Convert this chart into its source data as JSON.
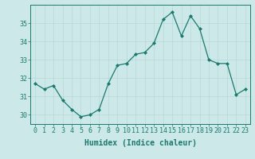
{
  "x": [
    0,
    1,
    2,
    3,
    4,
    5,
    6,
    7,
    8,
    9,
    10,
    11,
    12,
    13,
    14,
    15,
    16,
    17,
    18,
    19,
    20,
    21,
    22,
    23
  ],
  "y": [
    31.7,
    31.4,
    31.6,
    30.8,
    30.3,
    29.9,
    30.0,
    30.3,
    31.7,
    32.7,
    32.8,
    33.3,
    33.4,
    33.9,
    35.2,
    35.6,
    34.3,
    35.4,
    34.7,
    33.0,
    32.8,
    32.8,
    31.1,
    31.4
  ],
  "xlim": [
    -0.5,
    23.5
  ],
  "ylim": [
    29.5,
    36.0
  ],
  "yticks": [
    30,
    31,
    32,
    33,
    34,
    35
  ],
  "xticks": [
    0,
    1,
    2,
    3,
    4,
    5,
    6,
    7,
    8,
    9,
    10,
    11,
    12,
    13,
    14,
    15,
    16,
    17,
    18,
    19,
    20,
    21,
    22,
    23
  ],
  "xlabel": "Humidex (Indice chaleur)",
  "line_color": "#1a7a6e",
  "marker": "D",
  "marker_size": 2.0,
  "bg_color": "#cce8e8",
  "grid_color": "#b8d8d8",
  "xlabel_fontsize": 7,
  "tick_fontsize": 6
}
